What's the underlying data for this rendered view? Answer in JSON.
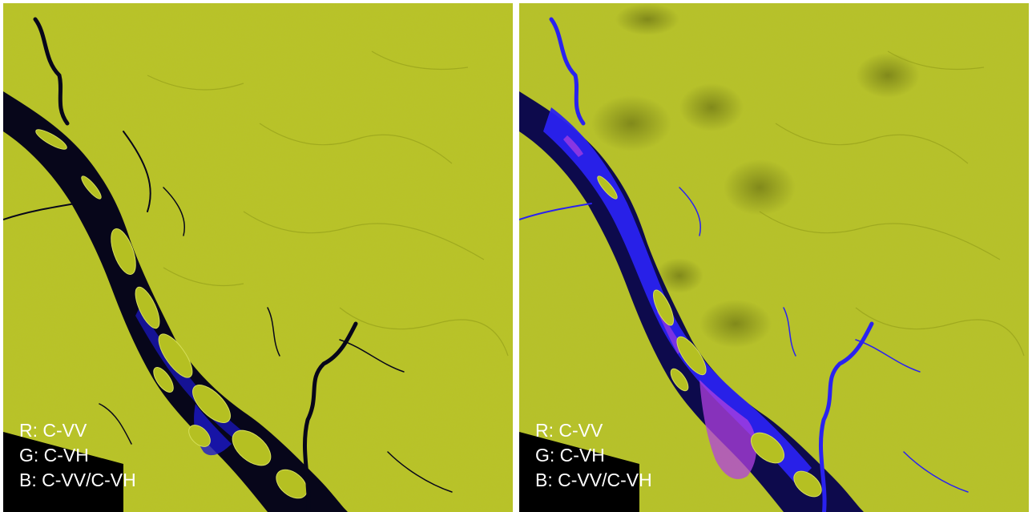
{
  "panels": [
    {
      "legend": {
        "r": "R: C-VV",
        "g": "G: C-VH",
        "b": "B: C-VV/C-VH"
      },
      "colors": {
        "land": "#b9c424",
        "water": "#07061a",
        "water_tint": "#1b18c9",
        "overlay": "none"
      }
    },
    {
      "legend": {
        "r": "R: C-VV",
        "g": "G: C-VH",
        "b": "B: C-VV/C-VH"
      },
      "colors": {
        "land": "#b7c226",
        "water": "#0d0a4c",
        "water_tint": "#2a22f0",
        "overlay": "#b040e0"
      }
    }
  ]
}
